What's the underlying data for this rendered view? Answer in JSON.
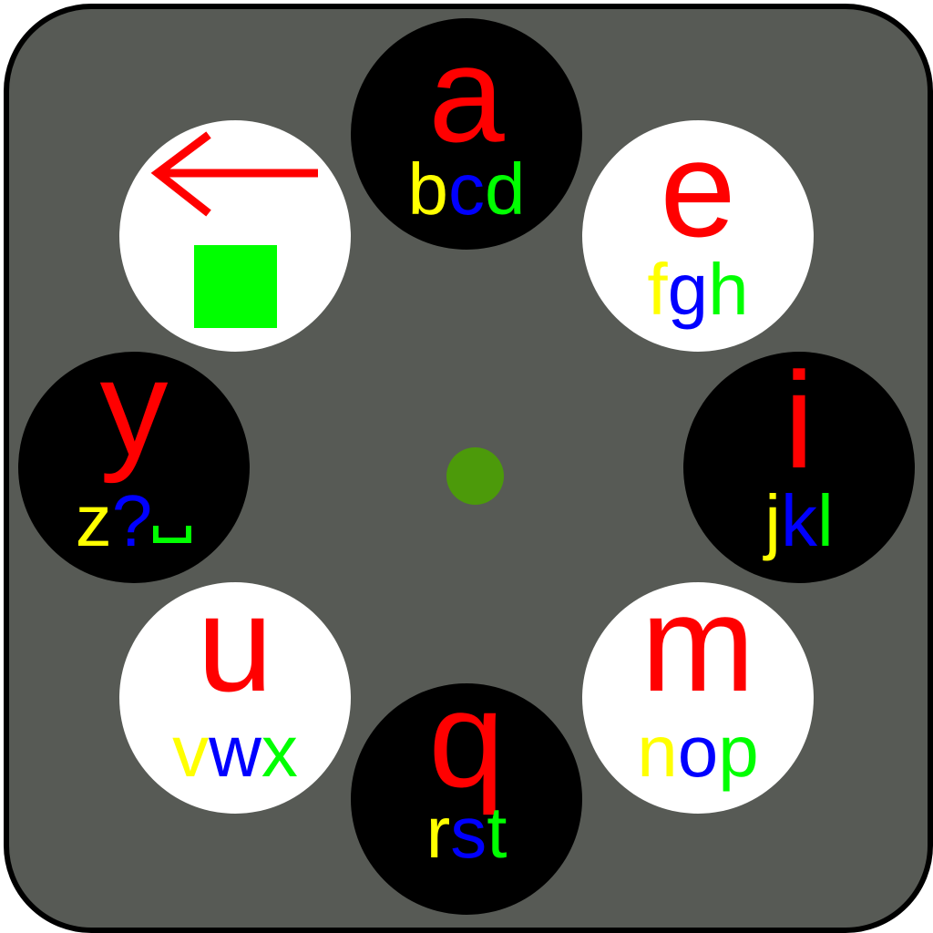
{
  "colors": {
    "board": "#575a55",
    "primary_letter": "#ff0000",
    "sub_1": "#ffff00",
    "sub_2": "#0000ff",
    "sub_3": "#00ff00",
    "center_dot": "#4c9a0a",
    "action_square": "#00ff00"
  },
  "keys": [
    {
      "id": "a",
      "main": "a",
      "subs": [
        "b",
        "c",
        "d"
      ],
      "theme": "dark"
    },
    {
      "id": "e",
      "main": "e",
      "subs": [
        "f",
        "g",
        "h"
      ],
      "theme": "light"
    },
    {
      "id": "i",
      "main": "i",
      "subs": [
        "j",
        "k",
        "l"
      ],
      "theme": "dark"
    },
    {
      "id": "m",
      "main": "m",
      "subs": [
        "n",
        "o",
        "p"
      ],
      "theme": "light"
    },
    {
      "id": "q",
      "main": "q",
      "subs": [
        "r",
        "s",
        "t"
      ],
      "theme": "dark"
    },
    {
      "id": "u",
      "main": "u",
      "subs": [
        "v",
        "w",
        "x"
      ],
      "theme": "light"
    },
    {
      "id": "y",
      "main": "y",
      "subs": [
        "z",
        "?"
      ],
      "space_symbol": "space-icon",
      "theme": "dark"
    },
    {
      "id": "action",
      "icon_top": "backspace-arrow-icon",
      "icon_bottom": "green-square-icon",
      "theme": "light"
    }
  ]
}
